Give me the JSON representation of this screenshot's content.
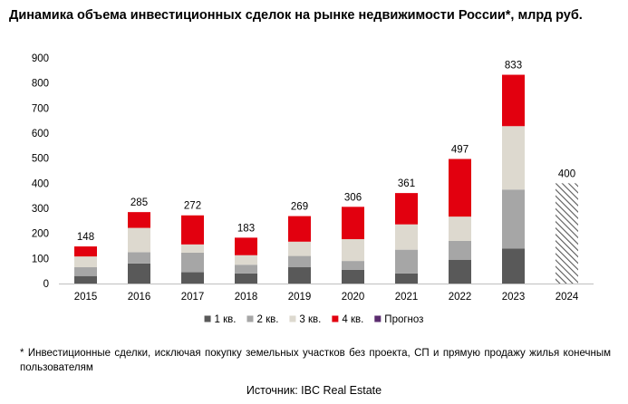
{
  "chart_data": {
    "type": "bar",
    "stacked": true,
    "title": "Динамика объема инвестиционных сделок на рынке недвижимости России*, млрд руб.",
    "categories": [
      "2015",
      "2016",
      "2017",
      "2018",
      "2019",
      "2020",
      "2021",
      "2022",
      "2023",
      "2024"
    ],
    "series": [
      {
        "name": "1 кв.",
        "color": "#595959",
        "values": [
          30,
          80,
          45,
          40,
          65,
          55,
          40,
          95,
          140,
          0
        ]
      },
      {
        "name": "2 кв.",
        "color": "#a6a6a6",
        "values": [
          35,
          45,
          78,
          35,
          45,
          35,
          95,
          75,
          235,
          0
        ]
      },
      {
        "name": "3 кв.",
        "color": "#ddd9cf",
        "values": [
          43,
          97,
          33,
          38,
          57,
          87,
          101,
          97,
          253,
          0
        ]
      },
      {
        "name": "4 кв.",
        "color": "#e2000f",
        "values": [
          40,
          63,
          116,
          70,
          102,
          129,
          125,
          230,
          205,
          0
        ]
      },
      {
        "name": "Прогноз",
        "color": "#5b2c6f",
        "pattern": "diagonal-hatch",
        "values": [
          0,
          0,
          0,
          0,
          0,
          0,
          0,
          0,
          0,
          400
        ]
      }
    ],
    "totals": [
      "148",
      "285",
      "272",
      "183",
      "269",
      "306",
      "361",
      "497",
      "833",
      "400"
    ],
    "ylim": [
      0,
      900
    ],
    "yticks": [
      "0",
      "100",
      "200",
      "300",
      "400",
      "500",
      "600",
      "700",
      "800",
      "900"
    ],
    "grid": false,
    "legend": "bottom"
  },
  "footnote": "* Инвестиционные сделки, исключая покупку земельных участков без проекта, СП и прямую продажу жилья конечным пользователям",
  "source": "Источник: IBC Real Estate"
}
